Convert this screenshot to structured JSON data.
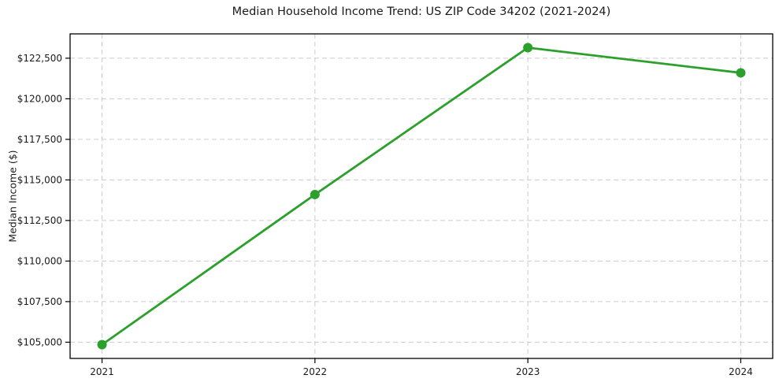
{
  "chart_data": {
    "type": "line",
    "title": "Median Household Income Trend: US ZIP Code 34202 (2021-2024)",
    "xlabel": "",
    "ylabel": "Median Income ($)",
    "categories": [
      "2021",
      "2022",
      "2023",
      "2024"
    ],
    "series": [
      {
        "name": "Median Household Income",
        "values": [
          104850,
          114100,
          123150,
          121600
        ]
      }
    ],
    "yticks": {
      "values": [
        105000,
        107500,
        110000,
        112500,
        115000,
        117500,
        120000,
        122500
      ],
      "labels": [
        "$105,000",
        "$107,500",
        "$110,000",
        "$112,500",
        "$115,000",
        "$117,500",
        "$120,000",
        "$122,500"
      ]
    },
    "ylim": [
      104000,
      124000
    ],
    "grid": "dashed-both-axes",
    "legend": "none",
    "marker": "circle",
    "line_color": "#2ca02c",
    "grid_color": "#cccccc",
    "spine_color": "#000000",
    "text_color": "#1a1a1a",
    "background_color": "#ffffff"
  }
}
